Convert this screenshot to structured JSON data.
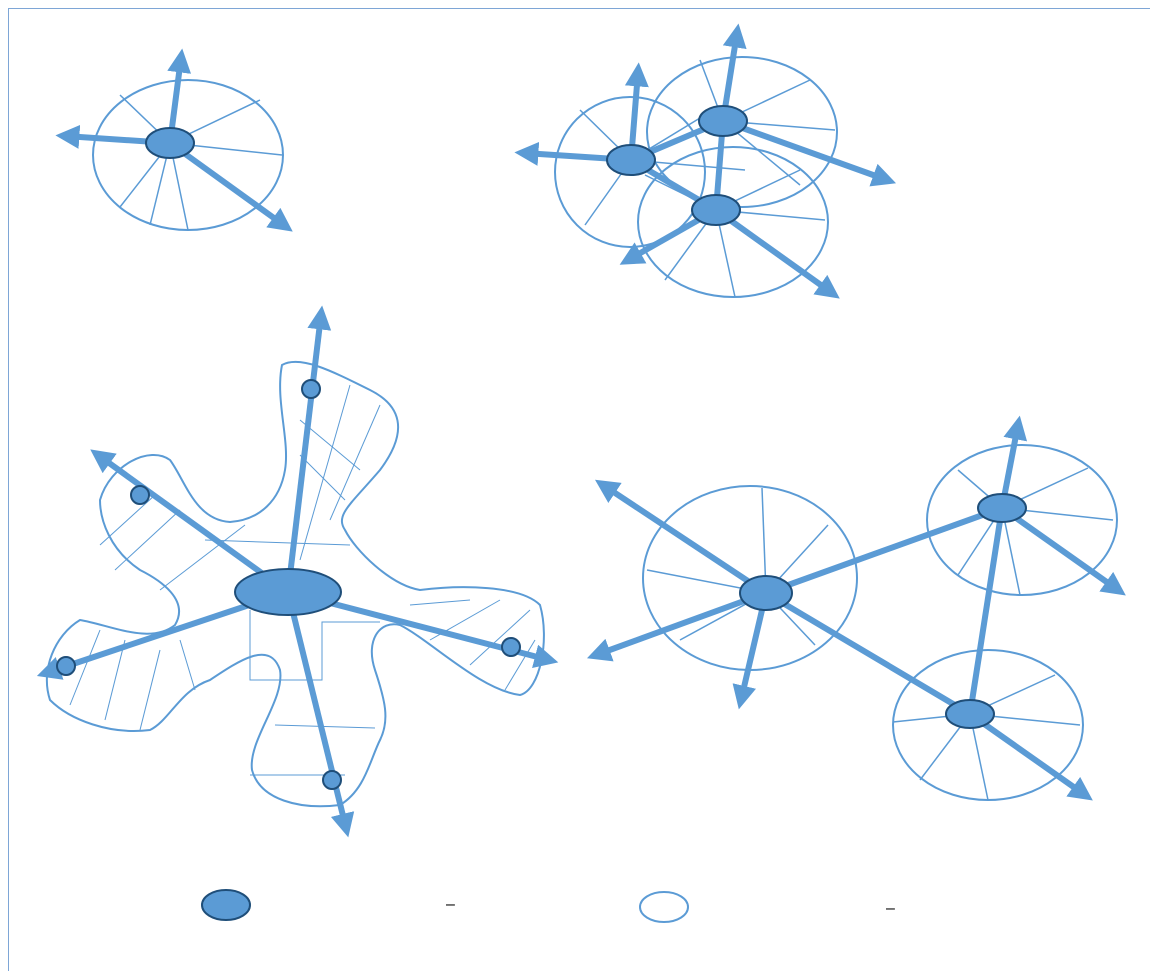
{
  "colors": {
    "node_fill": "#5b9bd5",
    "node_stroke": "#1f4e79",
    "line": "#5b9bd5",
    "frame": "#7ea6d6"
  },
  "legend": {
    "filled_node_separator": "–",
    "hollow_area_separator": "–"
  }
}
